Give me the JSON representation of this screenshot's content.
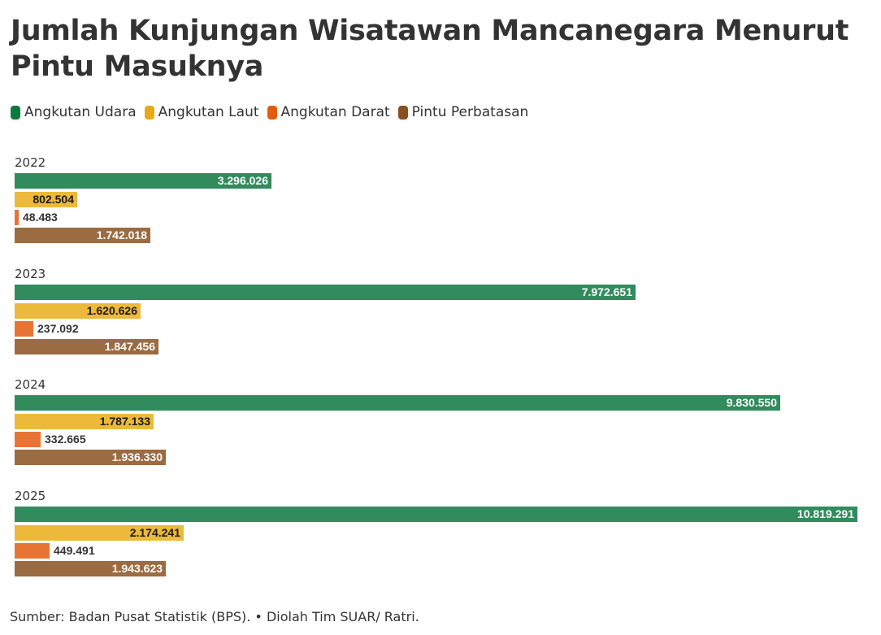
{
  "title": "Jumlah Kunjungan Wisatawan Mancanegara Menurut Pintu Masuknya",
  "legend": [
    {
      "label": "Angkutan Udara",
      "color": "#0c7a40"
    },
    {
      "label": "Angkutan Laut",
      "color": "#e8aa14"
    },
    {
      "label": "Angkutan Darat",
      "color": "#e35b0c"
    },
    {
      "label": "Pintu Perbatasan",
      "color": "#8a5020"
    }
  ],
  "source": "Sumber: Badan Pusat Statistik (BPS). • Diolah Tim SUAR/ Ratri.",
  "chart_data": {
    "type": "bar",
    "orientation": "horizontal",
    "title": "Jumlah Kunjungan Wisatawan Mancanegara Menurut Pintu Masuknya",
    "categories": [
      "2022",
      "2023",
      "2024",
      "2025"
    ],
    "series": [
      {
        "name": "Angkutan Udara",
        "color": "#318b5c",
        "values": [
          3296026,
          7972651,
          9830550,
          10819291
        ],
        "labels": [
          "3.296.026",
          "7.972.651",
          "9.830.550",
          "10.819.291"
        ]
      },
      {
        "name": "Angkutan Laut",
        "color": "#ecb93a",
        "values": [
          802504,
          1620626,
          1787133,
          2174241
        ],
        "labels": [
          "802.504",
          "1.620.626",
          "1.787.133",
          "2.174.241"
        ]
      },
      {
        "name": "Angkutan Darat",
        "color": "#e87434",
        "values": [
          48483,
          237092,
          332665,
          449491
        ],
        "labels": [
          "48.483",
          "237.092",
          "332.665",
          "449.491"
        ]
      },
      {
        "name": "Pintu Perbatasan",
        "color": "#9b6b41",
        "values": [
          1742018,
          1847456,
          1936330,
          1943623
        ],
        "labels": [
          "1.742.018",
          "1.847.456",
          "1.936.330",
          "1.943.623"
        ]
      }
    ],
    "xlabel": "",
    "ylabel": "",
    "xlim": [
      0,
      10819291
    ],
    "grid": false,
    "legend_position": "top",
    "data_labels": true
  },
  "source_note": "Sumber: Badan Pusat Statistik (BPS). • Diolah Tim SUAR/ Ratri."
}
